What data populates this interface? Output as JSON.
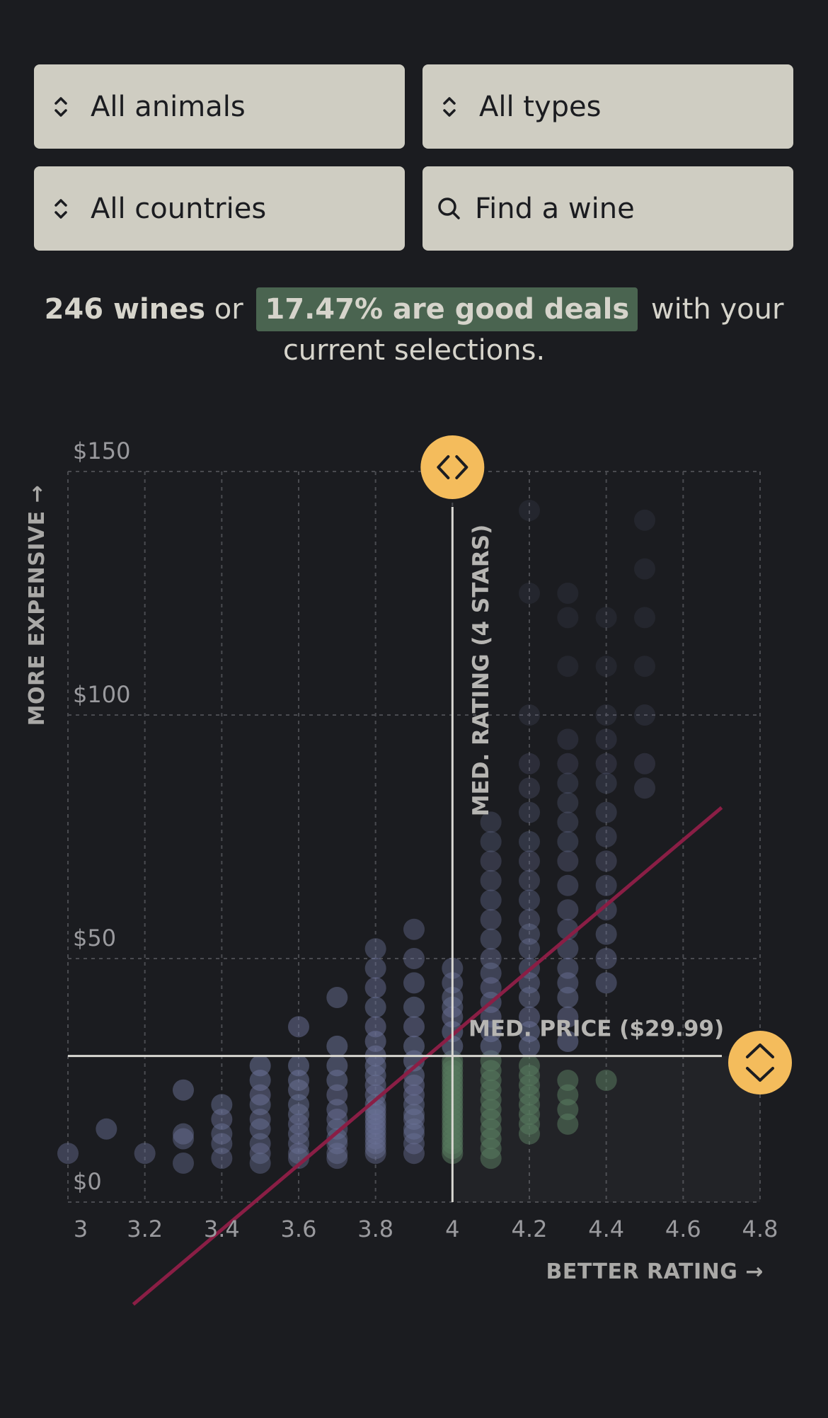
{
  "filters": {
    "animals": "All animals",
    "types": "All types",
    "countries": "All countries",
    "search_placeholder": "Find a wine"
  },
  "summary": {
    "count": "246 wines",
    "connector": "or",
    "deals": "17.47% are good deals",
    "suffix": "with your current selections."
  },
  "colors": {
    "dot_default": "#6a7196",
    "dot_deal": "#587a5f",
    "trend_line": "#8a1e45",
    "handle": "#f4bc5c",
    "deal_highlight": "#4a6450",
    "filter_bg": "#cfcdc2"
  },
  "chart_data": {
    "type": "scatter",
    "xlabel": "BETTER RATING →",
    "ylabel": "MORE EXPENSIVE →",
    "xlim": [
      3,
      4.8
    ],
    "ylim": [
      0,
      150
    ],
    "x_ticks": [
      "3",
      "3.2",
      "3.4",
      "3.6",
      "3.8",
      "4",
      "4.2",
      "4.4",
      "4.6",
      "4.8"
    ],
    "y_ticks": [
      "$0",
      "$50",
      "$100",
      "$150"
    ],
    "grid": true,
    "median_rating": 4.0,
    "median_rating_label": "MED. RATING (4 STARS)",
    "median_price": 29.99,
    "median_price_label": "MED. PRICE ($29.99)",
    "trend_line": [
      [
        3.17,
        -21
      ],
      [
        4.7,
        81
      ]
    ],
    "columns": [
      {
        "x": 3.0,
        "prices": [
          10
        ]
      },
      {
        "x": 3.1,
        "prices": [
          15
        ]
      },
      {
        "x": 3.2,
        "prices": [
          10
        ]
      },
      {
        "x": 3.3,
        "prices": [
          8,
          13,
          14,
          23
        ]
      },
      {
        "x": 3.4,
        "prices": [
          9,
          12,
          14,
          17,
          20
        ]
      },
      {
        "x": 3.5,
        "prices": [
          8,
          10,
          12,
          15,
          17,
          20,
          22,
          25,
          28
        ]
      },
      {
        "x": 3.6,
        "prices": [
          9,
          10,
          12,
          14,
          16,
          18,
          20,
          23,
          25,
          28,
          36
        ]
      },
      {
        "x": 3.7,
        "prices": [
          9,
          10,
          12,
          13,
          15,
          17,
          19,
          22,
          25,
          28,
          32,
          42
        ]
      },
      {
        "x": 3.8,
        "prices": [
          10,
          11,
          12,
          13,
          14,
          15,
          16,
          17,
          18,
          19,
          20,
          22,
          24,
          26,
          28,
          30,
          33,
          36,
          40,
          44,
          48,
          52
        ]
      },
      {
        "x": 3.9,
        "prices": [
          10,
          12,
          14,
          15,
          17,
          18,
          20,
          22,
          24,
          26,
          29,
          32,
          36,
          40,
          45,
          50,
          56
        ]
      },
      {
        "x": 4.0,
        "prices": [
          10,
          11,
          12,
          13,
          14,
          15,
          16,
          17,
          18,
          19,
          20,
          21,
          22,
          23,
          24,
          25,
          26,
          27,
          28,
          29
        ]
      },
      {
        "x": 4.1,
        "prices": [
          9,
          11,
          13,
          15,
          17,
          19,
          21,
          23,
          25,
          27,
          29
        ]
      },
      {
        "x": 4.2,
        "prices": [
          14,
          16,
          18,
          20,
          22,
          24,
          26,
          28
        ]
      },
      {
        "x": 4.3,
        "prices": [
          16,
          19,
          22,
          25
        ]
      },
      {
        "x": 4.4,
        "prices": [
          25
        ]
      },
      {
        "x": 4.0,
        "prices": [
          32,
          35,
          38,
          40,
          42,
          45,
          48
        ]
      },
      {
        "x": 4.1,
        "prices": [
          32,
          35,
          38,
          41,
          44,
          47,
          50,
          54,
          58,
          62,
          66,
          70,
          74,
          78
        ]
      },
      {
        "x": 4.2,
        "prices": [
          32,
          35,
          38,
          42,
          45,
          48,
          52,
          55,
          58,
          62,
          66,
          70,
          74,
          80,
          85,
          90,
          100,
          125,
          142
        ]
      },
      {
        "x": 4.3,
        "prices": [
          33,
          38,
          42,
          45,
          48,
          52,
          56,
          60,
          65,
          70,
          74,
          78,
          82,
          86,
          90,
          95,
          110,
          120,
          125
        ]
      },
      {
        "x": 4.4,
        "prices": [
          45,
          50,
          55,
          60,
          65,
          70,
          75,
          80,
          86,
          90,
          95,
          100,
          110,
          120
        ]
      },
      {
        "x": 4.5,
        "prices": [
          85,
          90,
          100,
          110,
          120,
          130,
          140
        ]
      }
    ]
  }
}
